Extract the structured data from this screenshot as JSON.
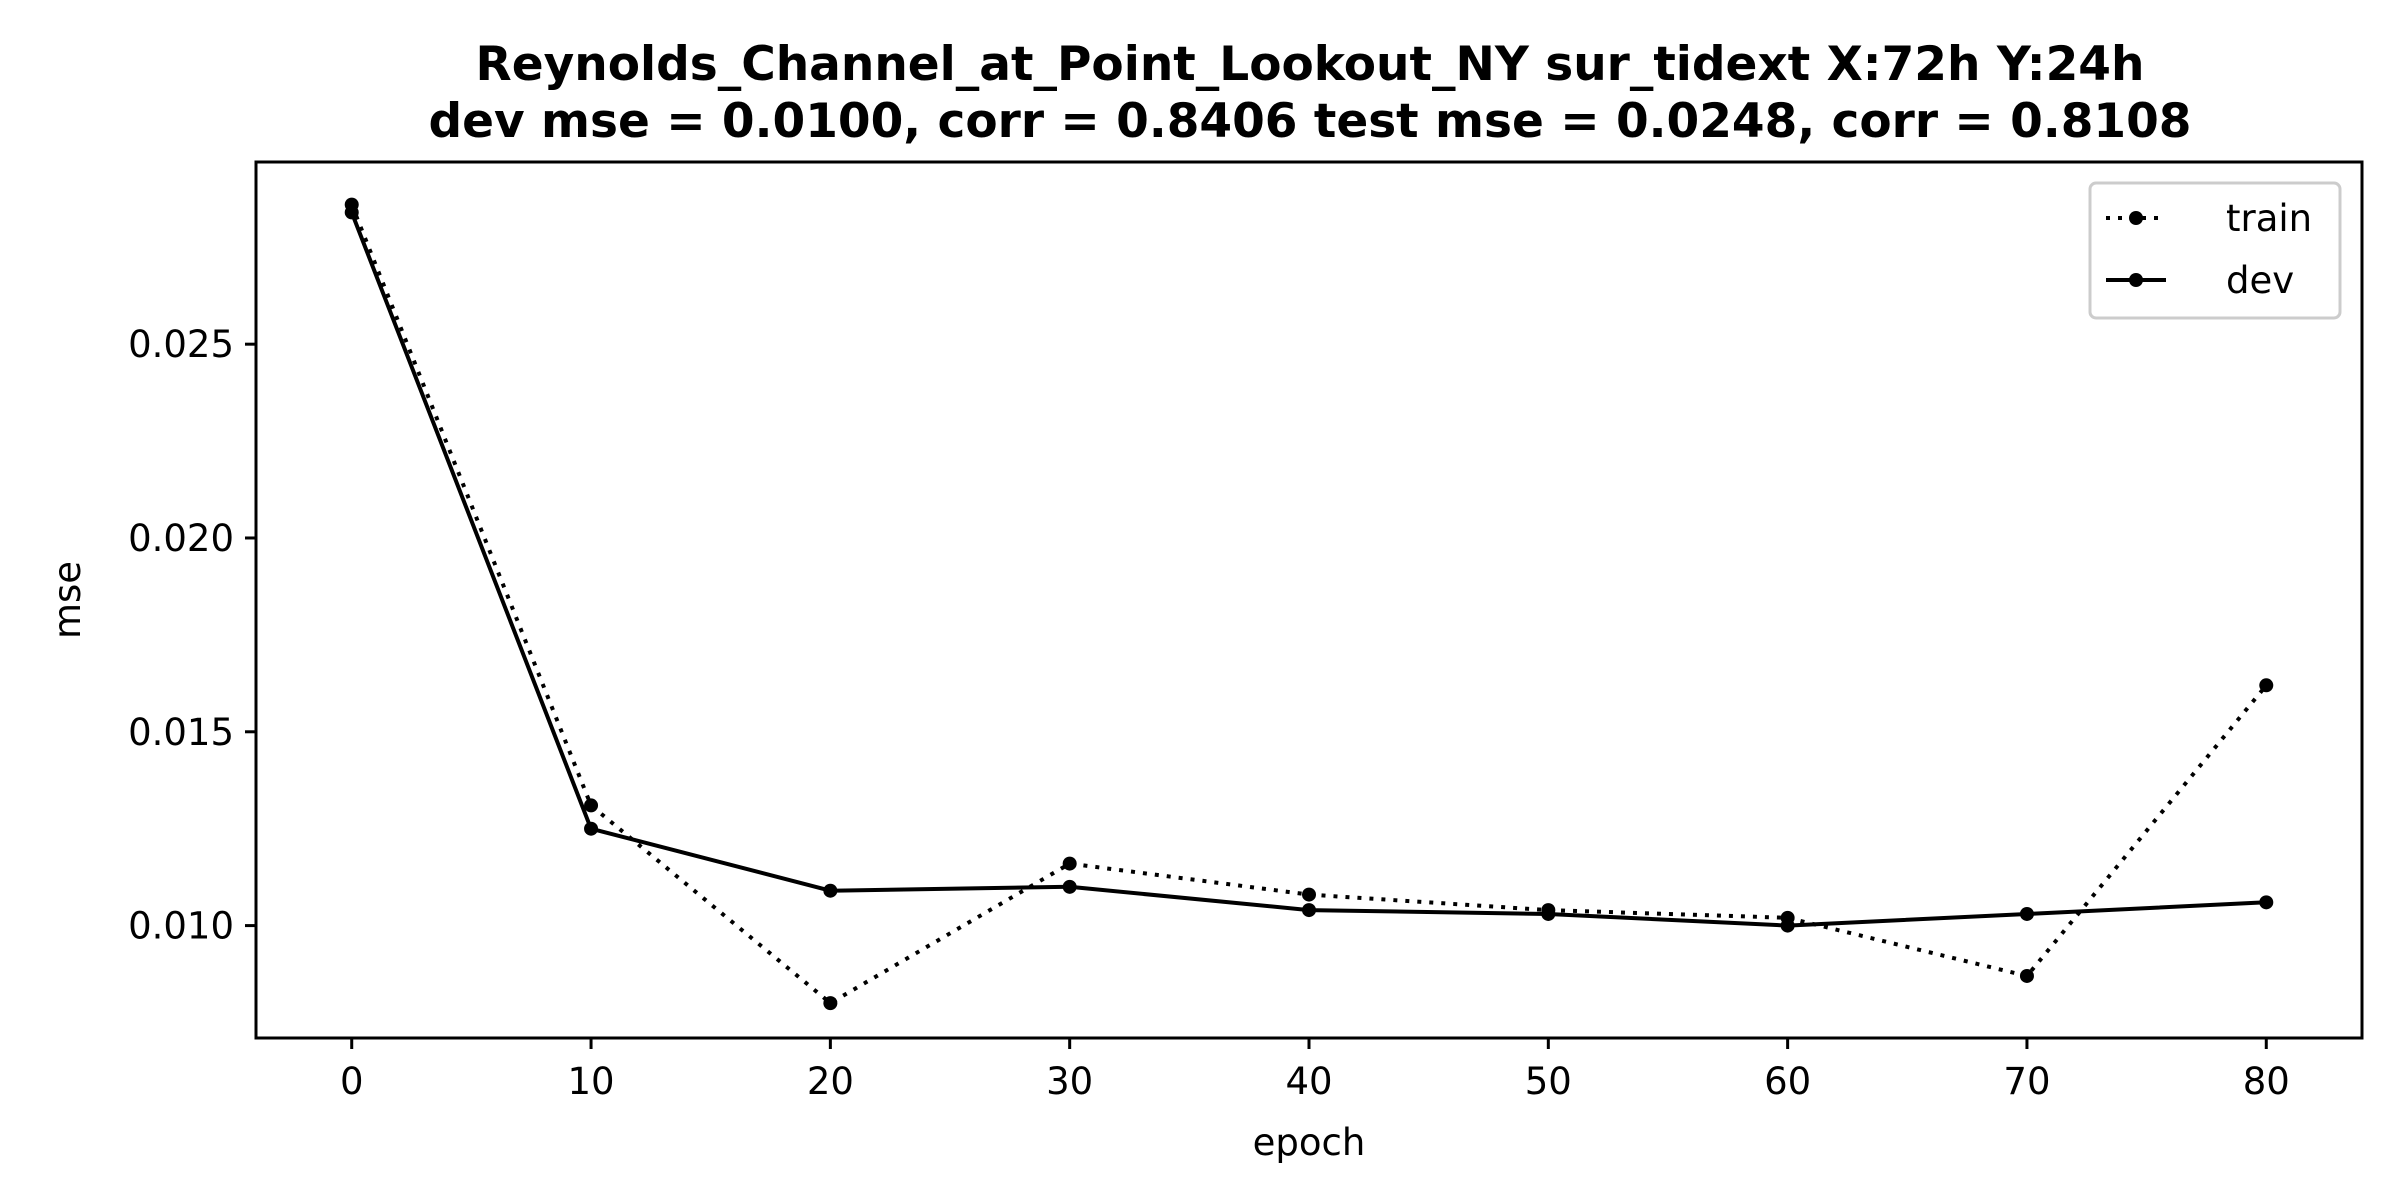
{
  "chart_data": {
    "type": "line",
    "title": "Reynolds_Channel_at_Point_Lookout_NY   sur_tidext   X:72h   Y:24h",
    "subtitle": "dev mse = 0.0100, corr = 0.8406   test mse = 0.0248, corr = 0.8108",
    "xlabel": "epoch",
    "ylabel": "mse",
    "x": [
      0,
      10,
      20,
      30,
      40,
      50,
      60,
      70,
      80
    ],
    "xlim": [
      -4,
      84
    ],
    "ylim": [
      0.0071,
      0.0297
    ],
    "xticks": [
      0,
      10,
      20,
      30,
      40,
      50,
      60,
      70,
      80
    ],
    "yticks": [
      0.01,
      0.015,
      0.02,
      0.025
    ],
    "ytick_labels": [
      "0.010",
      "0.015",
      "0.020",
      "0.025"
    ],
    "grid": false,
    "legend": "top-right",
    "series": [
      {
        "name": "train",
        "style": "dotted",
        "color": "#000000",
        "values": [
          0.0286,
          0.0131,
          0.008,
          0.0116,
          0.0108,
          0.0104,
          0.0102,
          0.0087,
          0.0162
        ]
      },
      {
        "name": "dev",
        "style": "solid",
        "color": "#000000",
        "values": [
          0.0284,
          0.0125,
          0.0109,
          0.011,
          0.0104,
          0.0103,
          0.01,
          0.0103,
          0.0106
        ]
      }
    ]
  }
}
